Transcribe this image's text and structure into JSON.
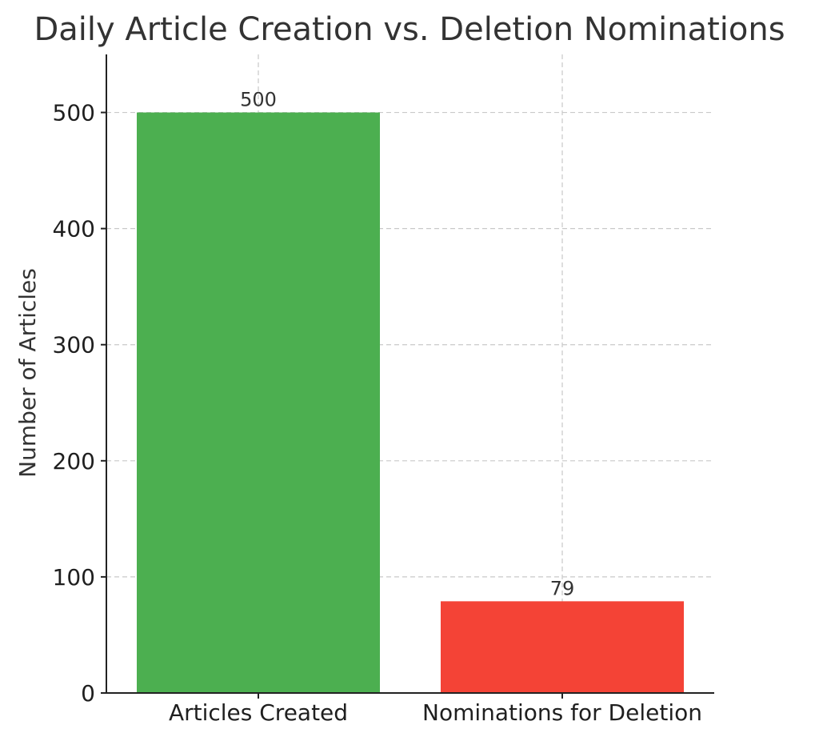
{
  "chart_data": {
    "type": "bar",
    "title": "Daily Article Creation vs. Deletion Nominations",
    "xlabel": "",
    "ylabel": "Number of Articles",
    "categories": [
      "Articles Created",
      "Nominations for Deletion"
    ],
    "values": [
      500,
      79
    ],
    "data_labels": [
      "500",
      "79"
    ],
    "colors": [
      "#4caf50",
      "#f44336"
    ],
    "ylim": [
      0,
      550
    ],
    "yticks": [
      0,
      100,
      200,
      300,
      400,
      500
    ],
    "ytick_labels": [
      "0",
      "100",
      "200",
      "300",
      "400",
      "500"
    ],
    "grid": true,
    "legend": "none"
  }
}
